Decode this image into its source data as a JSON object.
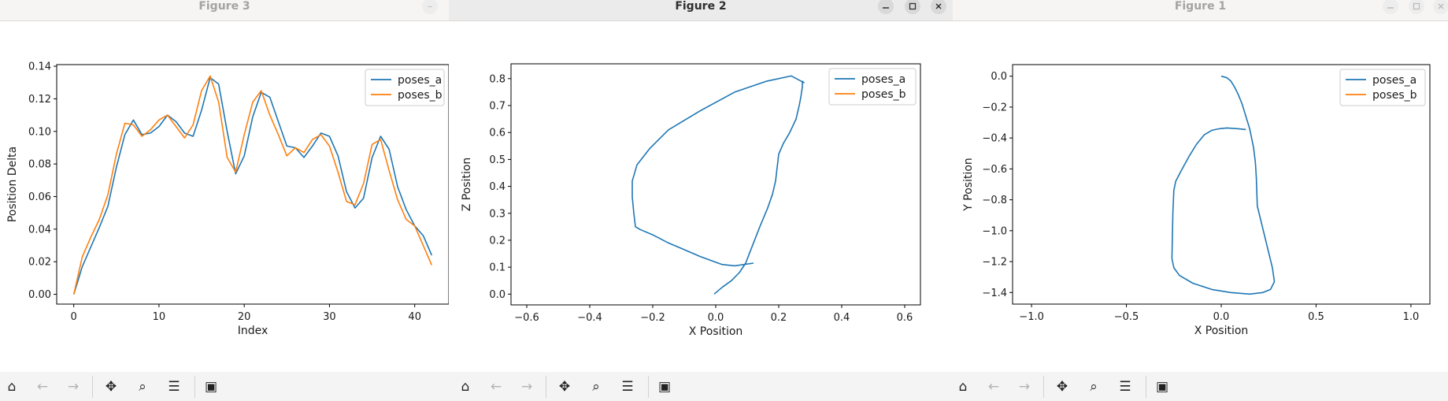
{
  "colors": {
    "series_a": "#1f77b4",
    "series_b": "#ff7f0e"
  },
  "toolbar_icons": [
    "home-icon",
    "back-icon",
    "forward-icon",
    "pan-icon",
    "zoom-icon",
    "configure-icon",
    "save-icon"
  ],
  "windows": [
    {
      "key": "figure3",
      "title": "Figure 3",
      "active": false
    },
    {
      "key": "figure2",
      "title": "Figure 2",
      "active": true
    },
    {
      "key": "figure1",
      "title": "Figure 1",
      "active": false
    }
  ],
  "chart_data": [
    {
      "type": "line",
      "window": "Figure 3",
      "title": "",
      "xlabel": "Index",
      "ylabel": "Position Delta",
      "xlim": [
        -2,
        44
      ],
      "ylim": [
        -0.006,
        0.141
      ],
      "xticks": [
        0,
        10,
        20,
        30,
        40
      ],
      "yticks": [
        0.0,
        0.02,
        0.04,
        0.06,
        0.08,
        0.1,
        0.12,
        0.14
      ],
      "xtick_labels": [
        "0",
        "10",
        "20",
        "30",
        "40"
      ],
      "ytick_labels": [
        "0.00",
        "0.02",
        "0.04",
        "0.06",
        "0.08",
        "0.10",
        "0.12",
        "0.14"
      ],
      "legend_position": "top-right",
      "grid": false,
      "series": [
        {
          "name": "poses_a",
          "x": [
            0,
            1,
            2,
            3,
            4,
            5,
            6,
            7,
            8,
            9,
            10,
            11,
            12,
            13,
            14,
            15,
            16,
            17,
            18,
            19,
            20,
            21,
            22,
            23,
            24,
            25,
            26,
            27,
            28,
            29,
            30,
            31,
            32,
            33,
            34,
            35,
            36,
            37,
            38,
            39,
            40,
            41,
            42
          ],
          "y": [
            0.0,
            0.017,
            0.029,
            0.041,
            0.054,
            0.078,
            0.098,
            0.107,
            0.098,
            0.099,
            0.103,
            0.11,
            0.106,
            0.099,
            0.097,
            0.113,
            0.133,
            0.129,
            0.1,
            0.074,
            0.085,
            0.109,
            0.124,
            0.121,
            0.106,
            0.091,
            0.09,
            0.084,
            0.091,
            0.099,
            0.097,
            0.085,
            0.063,
            0.053,
            0.059,
            0.084,
            0.097,
            0.089,
            0.066,
            0.052,
            0.042,
            0.036,
            0.024
          ]
        },
        {
          "name": "poses_b",
          "x": [
            0,
            1,
            2,
            3,
            4,
            5,
            6,
            7,
            8,
            9,
            10,
            11,
            12,
            13,
            14,
            15,
            16,
            17,
            18,
            19,
            20,
            21,
            22,
            23,
            24,
            25,
            26,
            27,
            28,
            29,
            30,
            31,
            32,
            33,
            34,
            35,
            36,
            37,
            38,
            39,
            40,
            41,
            42
          ],
          "y": [
            0.0,
            0.023,
            0.035,
            0.046,
            0.061,
            0.086,
            0.105,
            0.104,
            0.097,
            0.101,
            0.107,
            0.11,
            0.103,
            0.096,
            0.104,
            0.125,
            0.134,
            0.118,
            0.084,
            0.075,
            0.098,
            0.118,
            0.125,
            0.11,
            0.098,
            0.085,
            0.09,
            0.087,
            0.095,
            0.098,
            0.091,
            0.075,
            0.057,
            0.055,
            0.068,
            0.092,
            0.095,
            0.076,
            0.058,
            0.046,
            0.042,
            0.03,
            0.018
          ]
        }
      ]
    },
    {
      "type": "line",
      "window": "Figure 2",
      "title": "",
      "xlabel": "X Position",
      "ylabel": "Z Position",
      "xlim": [
        -0.65,
        0.65
      ],
      "ylim": [
        -0.04,
        0.855
      ],
      "xticks": [
        -0.6,
        -0.4,
        -0.2,
        0.0,
        0.2,
        0.4,
        0.6
      ],
      "yticks": [
        0.0,
        0.1,
        0.2,
        0.3,
        0.4,
        0.5,
        0.6,
        0.7,
        0.8
      ],
      "xtick_labels": [
        "−0.6",
        "−0.4",
        "−0.2",
        "0.0",
        "0.2",
        "0.4",
        "0.6"
      ],
      "ytick_labels": [
        "0.0",
        "0.1",
        "0.2",
        "0.3",
        "0.4",
        "0.5",
        "0.6",
        "0.7",
        "0.8"
      ],
      "legend_position": "top-right",
      "grid": false,
      "series": [
        {
          "name": "poses_a",
          "x": [
            -0.005,
            0.02,
            0.05,
            0.075,
            0.095,
            0.11,
            0.14,
            0.165,
            0.18,
            0.19,
            0.195,
            0.2,
            0.215,
            0.235,
            0.255,
            0.265,
            0.27,
            0.275,
            0.275,
            0.28,
            0.24,
            0.16,
            0.06,
            -0.05,
            -0.15,
            -0.21,
            -0.25,
            -0.265,
            -0.265,
            -0.26,
            -0.255,
            -0.24,
            -0.2,
            -0.15,
            -0.1,
            -0.05,
            0.02,
            0.06,
            0.12
          ],
          "y": [
            0.0,
            0.025,
            0.05,
            0.08,
            0.115,
            0.16,
            0.25,
            0.32,
            0.37,
            0.42,
            0.47,
            0.52,
            0.56,
            0.6,
            0.65,
            0.7,
            0.73,
            0.77,
            0.79,
            0.785,
            0.81,
            0.79,
            0.75,
            0.68,
            0.61,
            0.54,
            0.48,
            0.42,
            0.36,
            0.3,
            0.25,
            0.24,
            0.22,
            0.19,
            0.165,
            0.14,
            0.11,
            0.105,
            0.115
          ]
        },
        {
          "name": "poses_b",
          "x": [],
          "y": []
        }
      ]
    },
    {
      "type": "line",
      "window": "Figure 1",
      "title": "",
      "xlabel": "X Position",
      "ylabel": "Y Position",
      "xlim": [
        -1.1,
        1.1
      ],
      "ylim": [
        -1.475,
        0.075
      ],
      "xticks": [
        -1.0,
        -0.5,
        0.0,
        0.5,
        1.0
      ],
      "yticks": [
        0.0,
        -0.2,
        -0.4,
        -0.6,
        -0.8,
        -1.0,
        -1.2,
        -1.4
      ],
      "xtick_labels": [
        "−1.0",
        "−0.5",
        "0.0",
        "0.5",
        "1.0"
      ],
      "ytick_labels": [
        "0.0",
        "−0.2",
        "−0.4",
        "−0.6",
        "−0.8",
        "−1.0",
        "−1.2",
        "−1.4"
      ],
      "legend_position": "top-right",
      "grid": false,
      "series": [
        {
          "name": "poses_a",
          "x": [
            0.0,
            0.03,
            0.05,
            0.07,
            0.09,
            0.11,
            0.13,
            0.15,
            0.17,
            0.18,
            0.185,
            0.19,
            0.21,
            0.23,
            0.25,
            0.27,
            0.28,
            0.26,
            0.22,
            0.15,
            0.05,
            -0.05,
            -0.15,
            -0.22,
            -0.25,
            -0.26,
            -0.255,
            -0.25,
            -0.24,
            -0.21,
            -0.17,
            -0.13,
            -0.09,
            -0.05,
            -0.01,
            0.03,
            0.09,
            0.13
          ],
          "y": [
            0.0,
            -0.01,
            -0.03,
            -0.07,
            -0.12,
            -0.18,
            -0.26,
            -0.34,
            -0.46,
            -0.56,
            -0.66,
            -0.84,
            -0.94,
            -1.04,
            -1.14,
            -1.24,
            -1.33,
            -1.38,
            -1.4,
            -1.41,
            -1.4,
            -1.38,
            -1.34,
            -1.29,
            -1.24,
            -1.18,
            -0.88,
            -0.74,
            -0.68,
            -0.61,
            -0.52,
            -0.44,
            -0.38,
            -0.35,
            -0.34,
            -0.335,
            -0.34,
            -0.345
          ]
        },
        {
          "name": "poses_b",
          "x": [],
          "y": []
        }
      ]
    }
  ]
}
